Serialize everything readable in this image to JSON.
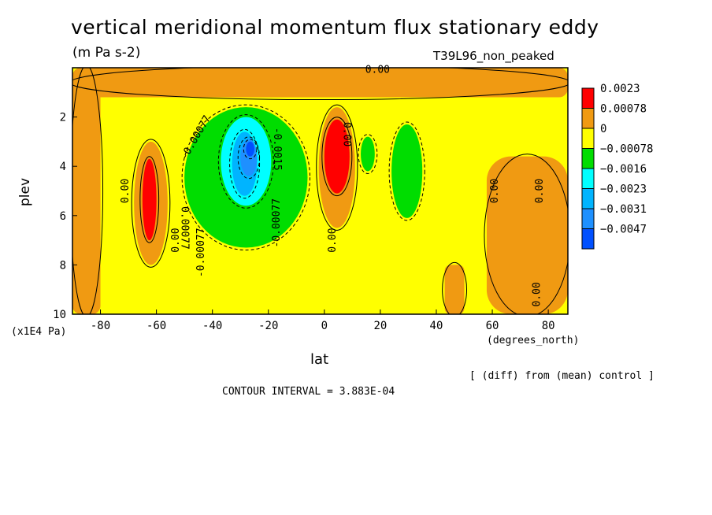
{
  "chart_data": {
    "type": "contour",
    "title": "vertical meridional momentum flux stationary eddy",
    "units": "(m Pa s-2)",
    "run_name": "T39L96_non_peaked",
    "xlabel": "lat",
    "x_unit_label": "(degrees_north)",
    "ylabel": "plev",
    "y_unit_label": "(x1E4 Pa)",
    "xlim": [
      -90,
      87
    ],
    "ylim": [
      10,
      0
    ],
    "x_ticks": [
      "-80",
      "-60",
      "-40",
      "-20",
      "0",
      "20",
      "40",
      "60",
      "80"
    ],
    "y_ticks": [
      "2",
      "4",
      "6",
      "8",
      "10"
    ],
    "legend": {
      "placement": "right",
      "levels": [
        {
          "label": "0.0023",
          "color": "#ff0000"
        },
        {
          "label": "0.00078",
          "color": "#f09a12"
        },
        {
          "label": "0",
          "color": "#ffff00"
        },
        {
          "label": "−0.00078",
          "color": "#00dd00"
        },
        {
          "label": "−0.0016",
          "color": "#00ffff"
        },
        {
          "label": "−0.0023",
          "color": "#00b4ff"
        },
        {
          "label": "−0.0031",
          "color": "#1e90ff"
        },
        {
          "label": "−0.0047",
          "color": "#0050ff"
        }
      ]
    },
    "contour_labels": [
      "0.00",
      "0.00",
      "0.00",
      "0.00",
      "0.00",
      "0.00",
      "0.00",
      "-0.00077",
      "-0.00077",
      "-0.00077",
      "-0.0015",
      "0.00077",
      "0.00"
    ],
    "diff_note": "[ (diff) from (mean) control ]",
    "contour_interval": "CONTOUR INTERVAL = 3.883E-04",
    "field": {
      "background": "#ffff00",
      "regions": [
        {
          "level": "0.00078",
          "lat": [
            -90,
            87
          ],
          "plev": [
            0,
            1.2
          ]
        },
        {
          "level": "0.00078",
          "lat": [
            -90,
            -80
          ],
          "plev": [
            0,
            10
          ]
        },
        {
          "level": "0.00078",
          "lat": [
            -68,
            -56
          ],
          "plev": [
            3.0,
            8.0
          ]
        },
        {
          "level": "0.0023",
          "lat": [
            -65,
            -60
          ],
          "plev": [
            3.7,
            7.0
          ]
        },
        {
          "level": "-0.00078",
          "lat": [
            -50,
            -6
          ],
          "plev": [
            1.6,
            7.3
          ]
        },
        {
          "level": "-0.0016",
          "lat": [
            -37,
            -19
          ],
          "plev": [
            2.0,
            5.6
          ]
        },
        {
          "level": "-0.0023",
          "lat": [
            -33,
            -24
          ],
          "plev": [
            2.6,
            5.2
          ]
        },
        {
          "level": "-0.0031",
          "lat": [
            -30,
            -24
          ],
          "plev": [
            2.9,
            4.4
          ]
        },
        {
          "level": "-0.0047",
          "lat": [
            -28,
            -25
          ],
          "plev": [
            3.0,
            3.6
          ]
        },
        {
          "level": "0.00078",
          "lat": [
            -2,
            11
          ],
          "plev": [
            1.6,
            6.5
          ]
        },
        {
          "level": "0.0023",
          "lat": [
            0,
            9
          ],
          "plev": [
            2.1,
            5.1
          ]
        },
        {
          "level": "-0.00078",
          "lat": [
            24,
            35
          ],
          "plev": [
            2.3,
            6.1
          ]
        },
        {
          "level": "-0.00078",
          "lat": [
            13,
            18
          ],
          "plev": [
            2.8,
            4.2
          ]
        },
        {
          "level": "0.00078",
          "lat": [
            58,
            87
          ],
          "plev": [
            3.6,
            10
          ]
        },
        {
          "level": "0.00078",
          "lat": [
            43,
            50
          ],
          "plev": [
            8.0,
            10
          ]
        }
      ]
    }
  }
}
